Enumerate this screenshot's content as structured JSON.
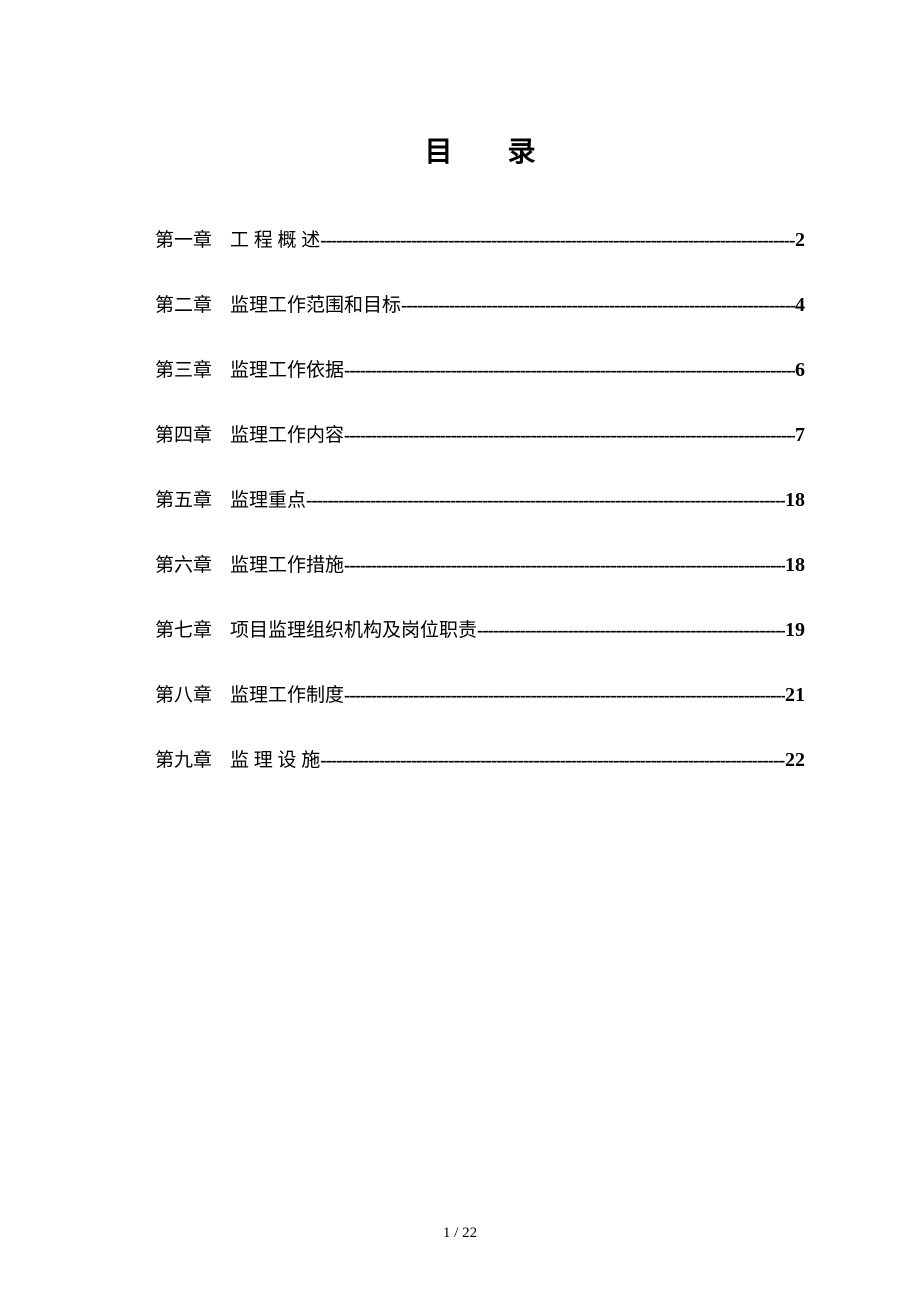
{
  "title": "目录",
  "toc_entries": [
    {
      "chapter": "第一章",
      "title": "工 程 概 述",
      "page": "2"
    },
    {
      "chapter": "第二章",
      "title": "监理工作范围和目标",
      "page": "4"
    },
    {
      "chapter": "第三章",
      "title": "监理工作依据",
      "page": "6"
    },
    {
      "chapter": "第四章",
      "title": "监理工作内容",
      "page": "7"
    },
    {
      "chapter": "第五章",
      "title": "监理重点",
      "page": "18"
    },
    {
      "chapter": "第六章",
      "title": "监理工作措施",
      "page": "18"
    },
    {
      "chapter": "第七章",
      "title": "项目监理组织机构及岗位职责",
      "page": "19"
    },
    {
      "chapter": "第八章",
      "title": "监理工作制度",
      "page": "21"
    },
    {
      "chapter": "第九章",
      "title": "监 理 设 施",
      "page": "22"
    }
  ],
  "footer": {
    "current_page": "1",
    "separator": " / ",
    "total_pages": "22"
  },
  "leader_char": "-",
  "colors": {
    "background": "#ffffff",
    "text": "#000000"
  }
}
